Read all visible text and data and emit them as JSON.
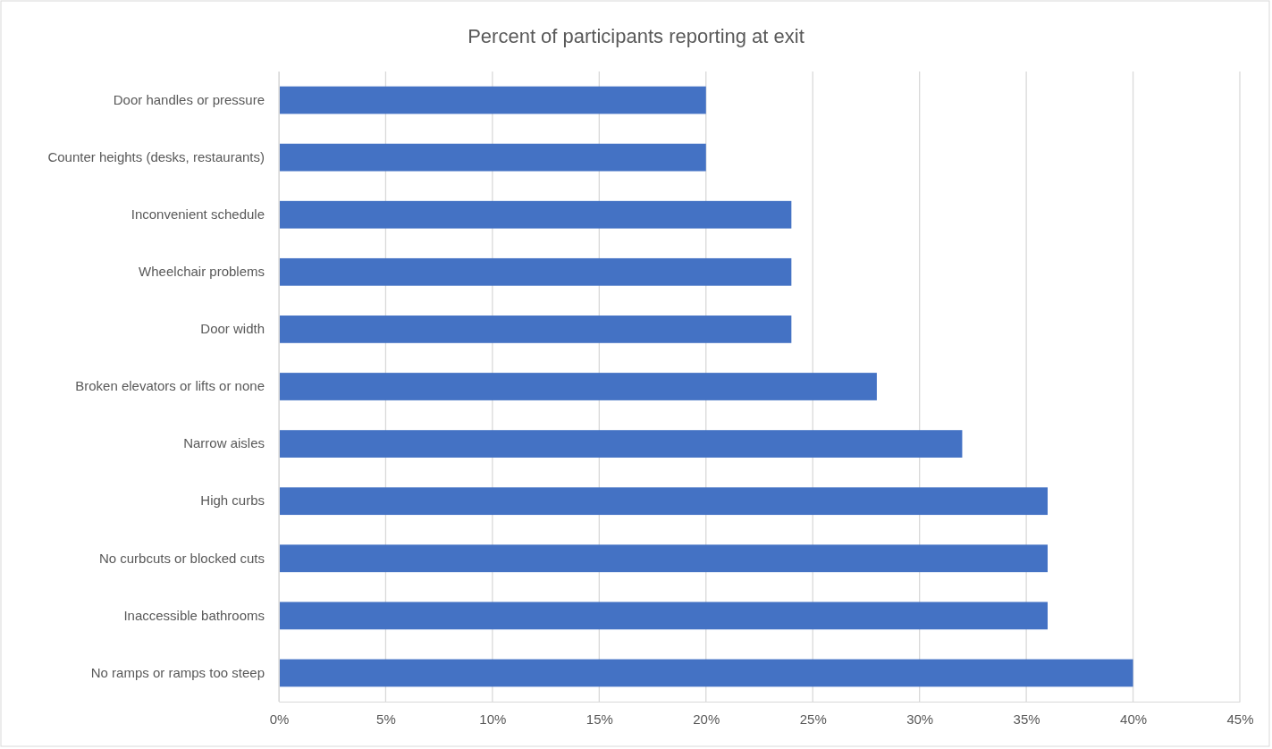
{
  "chart_data": {
    "type": "bar",
    "orientation": "horizontal",
    "title": "Percent of participants reporting at exit",
    "categories": [
      "Door handles or pressure",
      "Counter heights (desks, restaurants)",
      "Inconvenient schedule",
      "Wheelchair problems",
      "Door width",
      "Broken elevators or lifts or none",
      "Narrow aisles",
      "High curbs",
      "No curbcuts or blocked cuts",
      "Inaccessible bathrooms",
      "No ramps or ramps too steep"
    ],
    "values": [
      20,
      20,
      24,
      24,
      24,
      28,
      32,
      36,
      36,
      36,
      40
    ],
    "color": "#4472c4",
    "xlim": [
      0,
      45
    ],
    "xticks": [
      {
        "value": 0,
        "label": "0%"
      },
      {
        "value": 5,
        "label": "5%"
      },
      {
        "value": 10,
        "label": "10%"
      },
      {
        "value": 15,
        "label": "15%"
      },
      {
        "value": 20,
        "label": "20%"
      },
      {
        "value": 25,
        "label": "25%"
      },
      {
        "value": 30,
        "label": "30%"
      },
      {
        "value": 35,
        "label": "35%"
      },
      {
        "value": 40,
        "label": "40%"
      },
      {
        "value": 45,
        "label": "45%"
      }
    ],
    "grid": "x"
  }
}
